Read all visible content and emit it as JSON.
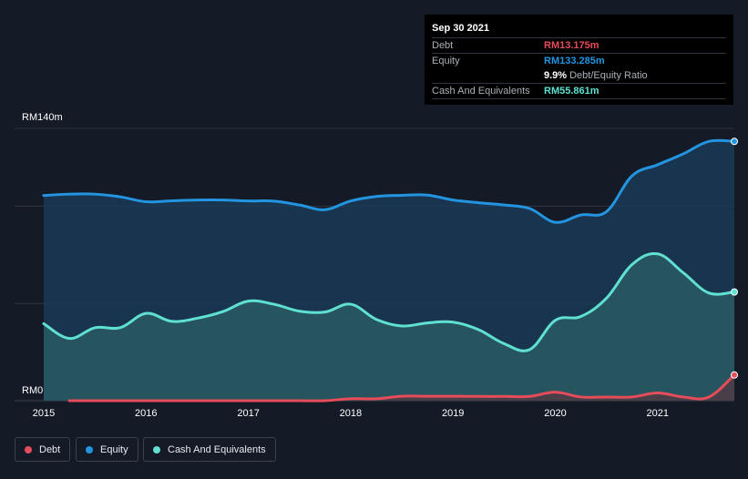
{
  "tooltip": {
    "date": "Sep 30 2021",
    "debt_label": "Debt",
    "debt_value": "RM13.175m",
    "equity_label": "Equity",
    "equity_value": "RM133.285m",
    "ratio_value": "9.9%",
    "ratio_label": "Debt/Equity Ratio",
    "cash_label": "Cash And Equivalents",
    "cash_value": "RM55.861m"
  },
  "legend": {
    "debt": "Debt",
    "equity": "Equity",
    "cash": "Cash And Equivalents"
  },
  "colors": {
    "background": "#151b26",
    "debt": "#e64c5a",
    "equity": "#2394df",
    "cash": "#5fe0d0",
    "grid": "#2f3540"
  },
  "chart_data": {
    "type": "area",
    "title": "",
    "xlabel": "",
    "ylabel": "",
    "ylim": [
      0,
      140
    ],
    "y_unit": "RM m",
    "y_tick_labels": [
      "RM0",
      "RM140m"
    ],
    "x_ticks": [
      2015,
      2016,
      2017,
      2018,
      2019,
      2020,
      2021
    ],
    "x_tick_labels": [
      "2015",
      "2016",
      "2017",
      "2018",
      "2019",
      "2020",
      "2021"
    ],
    "grid": true,
    "legend_position": "bottom-left",
    "series": [
      {
        "name": "Equity",
        "x": [
          2015.0,
          2015.25,
          2015.5,
          2015.75,
          2016.0,
          2016.25,
          2016.5,
          2016.75,
          2017.0,
          2017.25,
          2017.5,
          2017.75,
          2018.0,
          2018.25,
          2018.5,
          2018.75,
          2019.0,
          2019.25,
          2019.5,
          2019.75,
          2020.0,
          2020.25,
          2020.5,
          2020.75,
          2021.0,
          2021.25,
          2021.5,
          2021.75
        ],
        "values": [
          105.5,
          106.2,
          106.2,
          104.8,
          102.3,
          102.8,
          103.2,
          103.2,
          102.7,
          102.6,
          100.6,
          98.2,
          102.7,
          105.0,
          105.6,
          105.7,
          103.2,
          101.8,
          100.6,
          98.8,
          91.7,
          95.5,
          97.2,
          115.6,
          121.3,
          126.9,
          133.3,
          133.3
        ]
      },
      {
        "name": "Cash And Equivalents",
        "x": [
          2015.0,
          2015.25,
          2015.5,
          2015.75,
          2016.0,
          2016.25,
          2016.5,
          2016.75,
          2017.0,
          2017.25,
          2017.5,
          2017.75,
          2018.0,
          2018.25,
          2018.5,
          2018.75,
          2019.0,
          2019.25,
          2019.5,
          2019.75,
          2020.0,
          2020.25,
          2020.5,
          2020.75,
          2021.0,
          2021.25,
          2021.5,
          2021.75
        ],
        "values": [
          39.6,
          32.0,
          37.5,
          37.6,
          44.9,
          40.8,
          42.4,
          45.8,
          51.2,
          49.6,
          46.0,
          45.6,
          49.6,
          41.8,
          38.4,
          40.0,
          40.4,
          36.5,
          29.3,
          26.3,
          41.3,
          43.3,
          52.7,
          70.0,
          75.5,
          65.8,
          55.4,
          55.9
        ]
      },
      {
        "name": "Debt",
        "x": [
          2015.0,
          2015.25,
          2015.5,
          2015.75,
          2016.0,
          2016.25,
          2016.5,
          2016.75,
          2017.0,
          2017.25,
          2017.5,
          2017.75,
          2018.0,
          2018.25,
          2018.5,
          2018.75,
          2019.0,
          2019.25,
          2019.5,
          2019.75,
          2020.0,
          2020.25,
          2020.5,
          2020.75,
          2021.0,
          2021.25,
          2021.5,
          2021.75
        ],
        "values": [
          null,
          0.0,
          0.0,
          0.0,
          0.0,
          0.0,
          0.0,
          0.0,
          0.0,
          0.0,
          0.0,
          0.0,
          1.0,
          1.0,
          2.3,
          2.3,
          2.3,
          2.2,
          2.2,
          2.2,
          4.4,
          1.9,
          1.9,
          1.9,
          4.0,
          1.9,
          1.9,
          13.2
        ]
      }
    ]
  }
}
